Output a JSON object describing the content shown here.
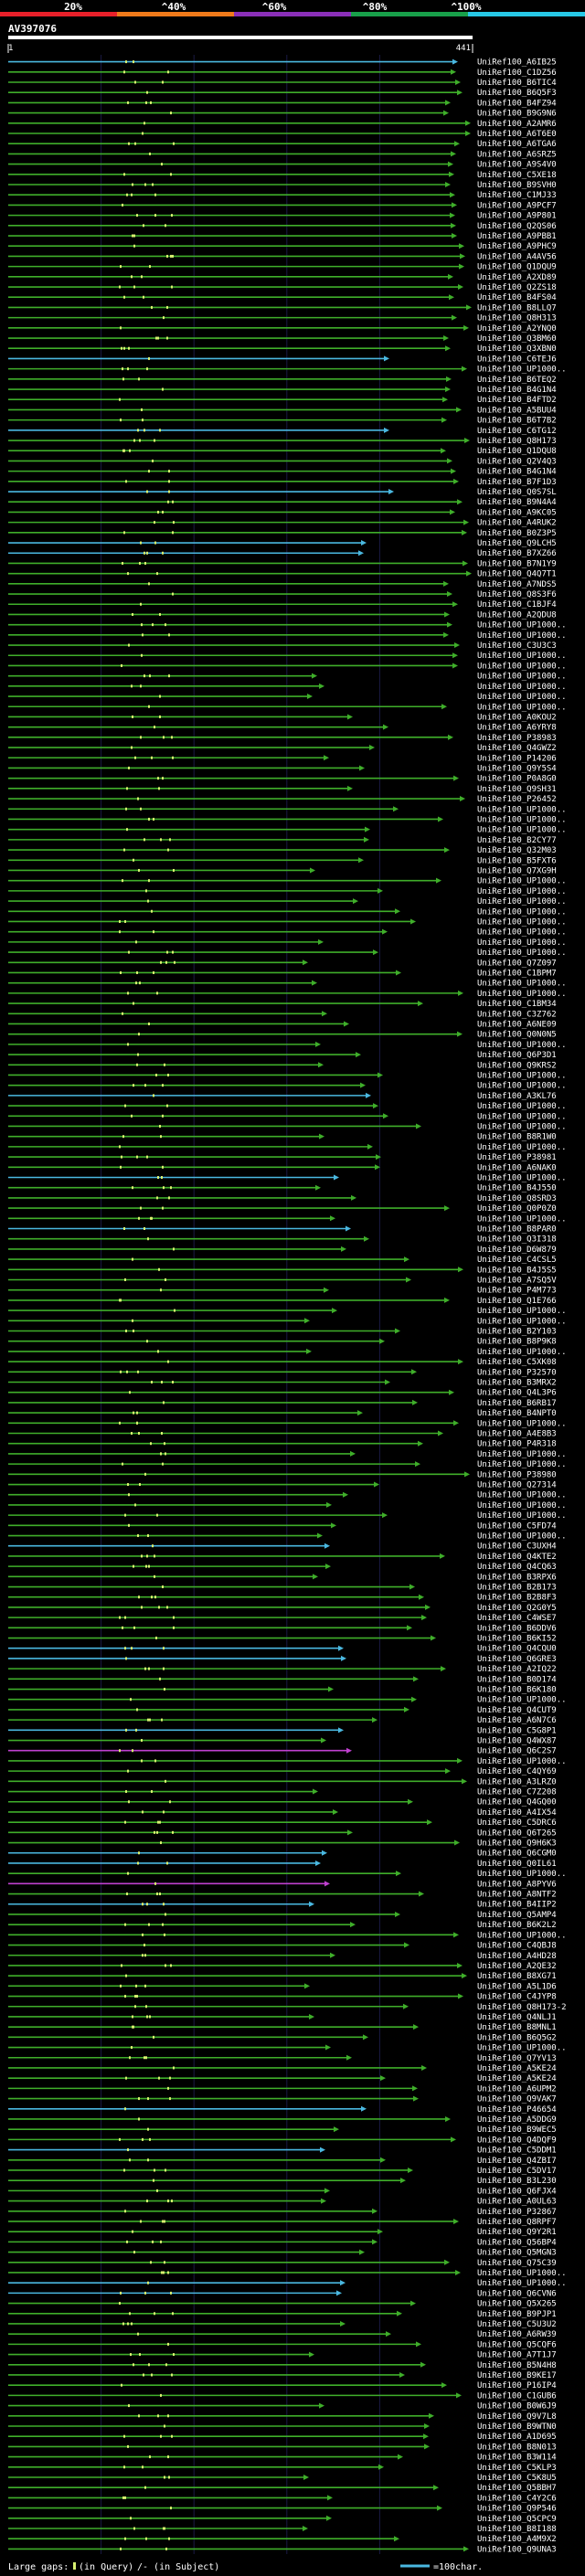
{
  "header": {
    "query_id": "AV397076",
    "ruler_start": "1",
    "ruler_end": "441",
    "identity_scale": {
      "ticks": [
        "20%",
        "^40%",
        "^60%",
        "^80%",
        "^100%"
      ],
      "colors": [
        "#e8202a",
        "#f07a1a",
        "#8a2fb8",
        "#18a04a",
        "#27c8e6"
      ]
    }
  },
  "alignment": {
    "query_length": 441,
    "row_label_prefix": "UniRef100_",
    "colors": {
      "green": "#3fae2a",
      "cyan": "#4ab8e0",
      "magenta": "#c040d0",
      "gap_mark": "#d8f070",
      "grid": "#1a1a44"
    },
    "rows": [
      "A6IB25",
      "C1DZ56",
      "B6TIC4",
      "B6Q5F3",
      "B4FZ94",
      "B9G9N6",
      "A2AMR6",
      "A6T6E0",
      "A6TGA6",
      "A6SRZ5",
      "A9S4V0",
      "C5XE18",
      "B9SVH0",
      "C1MJ33",
      "A9PCF7",
      "A9P801",
      "Q2QS06",
      "A9PBB1",
      "A9PHC9",
      "A4AV56",
      "Q1DQU9",
      "A2XD89",
      "Q2ZS18",
      "B4FS04",
      "B8LLQ7",
      "Q8H313",
      "A2YNQ0",
      "Q3BM60",
      "Q3XBN0",
      "C6TEJ6",
      "UP1000..",
      "B6TEQ2",
      "B4G1N4",
      "B4FTD2",
      "A5BUU4",
      "B6T7B2",
      "C6TG12",
      "Q8H173",
      "Q1DQU8",
      "Q2V4Q3",
      "B4G1N4",
      "B7F1D3",
      "Q0S7SL",
      "B9N4A4",
      "A9KC05",
      "A4RUK2",
      "B0Z3P5",
      "Q9LCH5",
      "B7XZ66",
      "B7N1Y9",
      "Q4Q7T1",
      "A7NDS5",
      "Q8S3F6",
      "C1BJF4",
      "A2QDU8",
      "UP1000..",
      "UP1000..",
      "C3U3C3",
      "UP1000..",
      "UP1000..",
      "UP1000..",
      "UP1000..",
      "UP1000..",
      "UP1000..",
      "A0KOU2",
      "A6YRY8",
      "P38983",
      "Q4GWZ2",
      "P14206",
      "Q9Y5S4",
      "P0A8G0",
      "Q9SH31",
      "P26452",
      "UP1000..",
      "UP1000..",
      "UP1000..",
      "B2CY77",
      "Q32M03",
      "B5FXT6",
      "Q7XG9H",
      "UP1000..",
      "UP1000..",
      "UP1000..",
      "UP1000..",
      "UP1000..",
      "UP1000..",
      "UP1000..",
      "UP1000..",
      "Q7Z097",
      "C1BPM7",
      "UP1000..",
      "UP1000..",
      "C1BM34",
      "C3Z762",
      "A6NE09",
      "Q0N0N5",
      "UP1000..",
      "Q6P3D1",
      "Q9KRS2",
      "UP1000..",
      "UP1000..",
      "A3KL76",
      "UP1000..",
      "UP1000..",
      "UP1000..",
      "B8R1W0",
      "UP1000..",
      "P38981",
      "A6NAK0",
      "UP1000..",
      "B4J550",
      "Q8SRD3",
      "Q0P0Z0",
      "UP1000..",
      "B8PAR0",
      "Q3I318",
      "D6W879",
      "C4CSL5",
      "B4J5S5",
      "A7SQ5V",
      "P4M773",
      "Q1E766",
      "UP1000..",
      "UP1000..",
      "B2Y103",
      "B8P9K8",
      "UP1000..",
      "C5XK08",
      "P32570",
      "B3MRX2",
      "Q4L3P6",
      "B6RB17",
      "B4NPT0",
      "UP1000..",
      "A4E8B3",
      "P4R318",
      "UP1000..",
      "UP1000..",
      "P38980",
      "Q27314",
      "UP1000..",
      "UP1000..",
      "UP1000..",
      "C5FD74",
      "UP1000..",
      "C3UXH4",
      "Q4KTE2",
      "Q4CQ63",
      "B3RPX6",
      "B2B173",
      "B2B8F3",
      "Q2G0Y5",
      "C4WSE7",
      "B6DDV6",
      "B6KI52",
      "Q4CQU0",
      "Q6GRE3",
      "A2IQ22",
      "B0D174",
      "B6K180",
      "UP1000..",
      "Q4CUT9",
      "A6N7C6",
      "C5G8P1",
      "Q4WX87",
      "Q6C2S7",
      "UP1000..",
      "C4QY69",
      "A3LRZ0",
      "C7Z208",
      "Q4GQ00",
      "A4IX54",
      "C5DRC6",
      "Q6T265",
      "Q9H6K3",
      "Q6CGM0",
      "Q0IL61",
      "UP1000..",
      "A8PYV6",
      "A8NTF2",
      "B4IIP2",
      "Q5AMP4",
      "B6K2L2",
      "UP1000..",
      "C4QBJ8",
      "A4HD28",
      "A2QE32",
      "B8XG71",
      "A5L1D6",
      "C4JYP8",
      "Q8H173-2",
      "Q4NLJ1",
      "B8MNL1",
      "B6Q5G2",
      "UP1000..",
      "Q7YV13",
      "A5KE24",
      "A5KE24",
      "A6UPM2",
      "Q9VAK7",
      "P46654",
      "A5DDG9",
      "B9WEC5",
      "Q4DQF9",
      "C5DDM1",
      "Q4ZBI7",
      "C5DV17",
      "B3L230",
      "Q6FJX4",
      "A0UL63",
      "P32867",
      "Q8RPF7",
      "Q9Y2R1",
      "Q56BP4",
      "Q5MGN3",
      "Q75C39",
      "UP1000..",
      "UP1000..",
      "Q6CVN6",
      "Q5X265",
      "B9PJP1",
      "C5U3U2",
      "A6RW39",
      "Q5CQF6",
      "A7T1J7",
      "B5N4H8",
      "B9KE17",
      "P16IP4",
      "C1GUB6",
      "B0W6J9",
      "Q9V7L8",
      "B9WTN0",
      "A1D695",
      "B8N013",
      "B3W114",
      "C5KLP3",
      "C5K8U5",
      "Q5BBH7",
      "C4Y2C6",
      "Q9P546",
      "Q5CPC9",
      "B8I188",
      "A4M9X2",
      "Q9UNA3"
    ]
  },
  "footer": {
    "legend_prefix": "Large gaps:",
    "in_query": "(in Query)",
    "in_subject": "/- (in Subject)",
    "scale_label": "=100char."
  }
}
